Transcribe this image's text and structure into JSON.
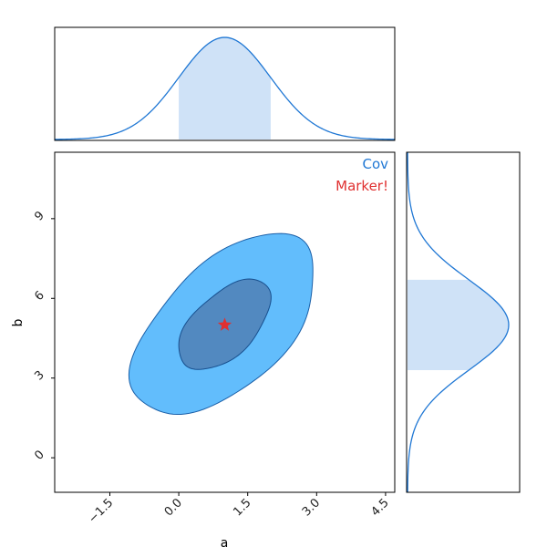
{
  "chart_data": {
    "type": "corner",
    "xlabel": "a",
    "ylabel": "b",
    "xlim": [
      -2.7,
      4.7
    ],
    "ylim": [
      -1.3,
      11.5
    ],
    "xticks": [
      -1.5,
      0.0,
      1.5,
      3.0,
      4.5
    ],
    "xtick_labels": [
      "−1.5",
      "0.0",
      "1.5",
      "3.0",
      "4.5"
    ],
    "yticks": [
      0,
      3,
      6,
      9
    ],
    "ytick_labels": [
      "0",
      "3",
      "6",
      "9"
    ],
    "legend": [
      {
        "label": "Cov",
        "color": "#1f77d4"
      },
      {
        "label": "Marker!",
        "color": "#e03030"
      }
    ],
    "legend_position": "top-right",
    "mean": {
      "a": 1.0,
      "b": 5.0
    },
    "std": {
      "a": 1.0,
      "b": 1.7
    },
    "shaded_interval": {
      "a": [
        0.0,
        2.0
      ],
      "b": [
        3.3,
        6.7
      ]
    },
    "contours": {
      "levels_sigma": [
        1,
        2
      ],
      "correlation": 0.55,
      "inner_color": "#5289c0",
      "outer_color": "#62bdfc",
      "line_color": "#1a5fa8"
    },
    "marker": {
      "a": 1.0,
      "b": 5.0,
      "shape": "star",
      "color": "#e03030"
    },
    "marginal_fill_color": "#cfe2f7",
    "marginal_line_color": "#1f77d4",
    "grid": false
  }
}
